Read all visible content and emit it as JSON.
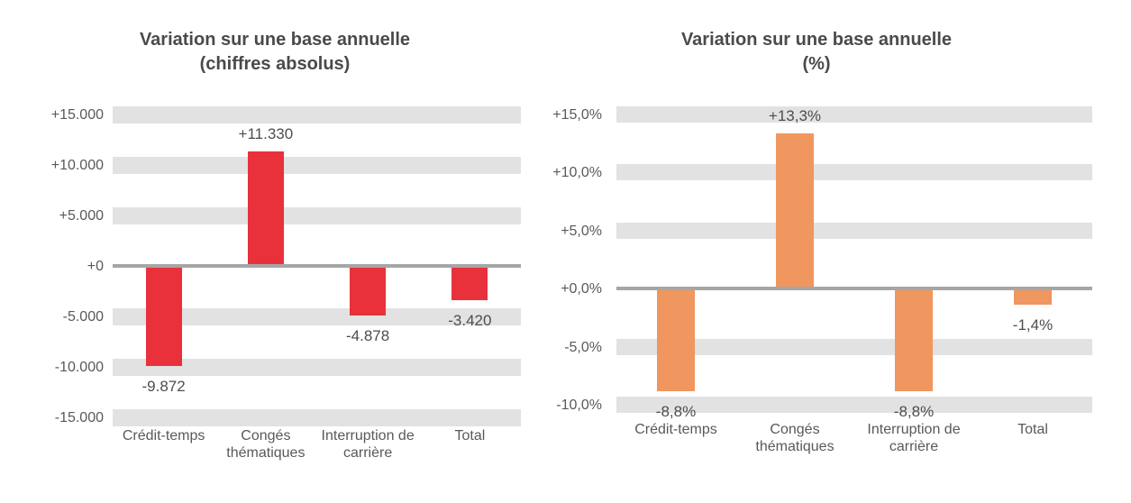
{
  "page": {
    "background_color": "#ffffff",
    "text_color_title": "#4a4a4a",
    "text_color_axis": "#595959",
    "gridband_color": "#e2e2e2",
    "zero_line_color": "#a6a6a6"
  },
  "chart_data": [
    {
      "type": "bar",
      "title": "Variation sur une base annuelle (chiffres absolus)",
      "title_lines": [
        "Variation sur une base annuelle",
        "(chiffres absolus)"
      ],
      "categories": [
        "Crédit-temps",
        "Congés thématiques",
        "Interruption de carrière",
        "Total"
      ],
      "values": [
        -9872,
        11330,
        -4878,
        -3420
      ],
      "bar_labels": [
        "-9.872",
        "+11.330",
        "-4.878",
        "-3.420"
      ],
      "bar_color": "#e8313b",
      "y_ticks": [
        {
          "value": 15000,
          "label": "+15.000"
        },
        {
          "value": 10000,
          "label": "+10.000"
        },
        {
          "value": 5000,
          "label": "+5.000"
        },
        {
          "value": 0,
          "label": "+0"
        },
        {
          "value": -5000,
          "label": "-5.000"
        },
        {
          "value": -10000,
          "label": "-10.000"
        },
        {
          "value": -15000,
          "label": "-15.000"
        }
      ],
      "ylim": [
        -15000,
        15000
      ],
      "xlabel": "",
      "ylabel": "",
      "legend": "none",
      "grid": "horizontal-gray-bands"
    },
    {
      "type": "bar",
      "title": "Variation sur une base annuelle (%)",
      "title_lines": [
        "Variation sur une base annuelle",
        "(%)"
      ],
      "categories": [
        "Crédit-temps",
        "Congés thématiques",
        "Interruption de carrière",
        "Total"
      ],
      "values": [
        -8.8,
        13.3,
        -8.8,
        -1.4
      ],
      "bar_labels": [
        "-8,8%",
        "+13,3%",
        "-8,8%",
        "-1,4%"
      ],
      "bar_color": "#f0965f",
      "y_ticks": [
        {
          "value": 15,
          "label": "+15,0%"
        },
        {
          "value": 10,
          "label": "+10,0%"
        },
        {
          "value": 5,
          "label": "+5,0%"
        },
        {
          "value": 0,
          "label": "+0,0%"
        },
        {
          "value": -5,
          "label": "-5,0%"
        },
        {
          "value": -10,
          "label": "-10,0%"
        }
      ],
      "ylim": [
        -10,
        15
      ],
      "xlabel": "",
      "ylabel": "",
      "legend": "none",
      "grid": "horizontal-gray-bands"
    }
  ]
}
